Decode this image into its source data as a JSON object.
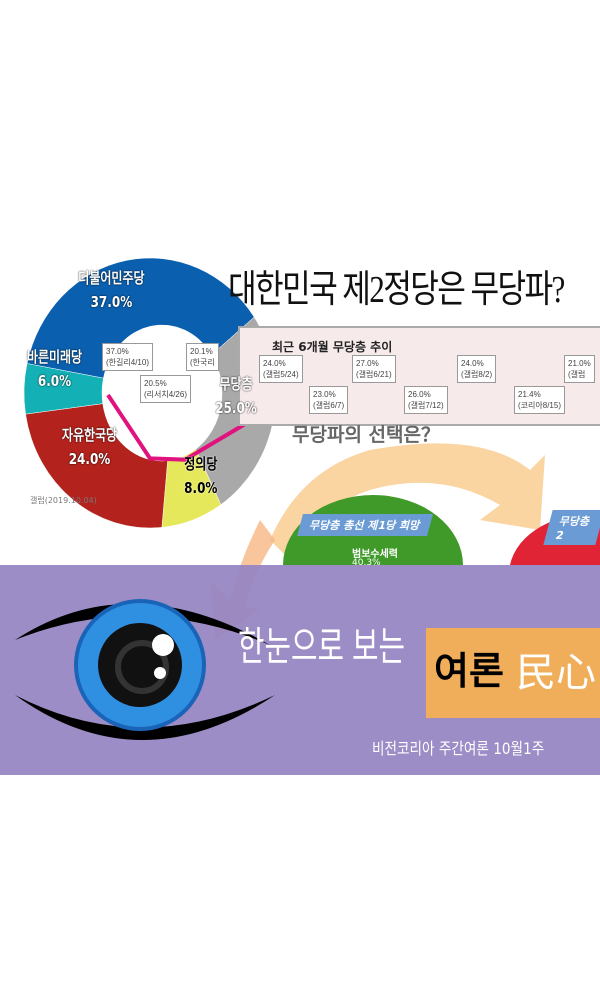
{
  "title": "대한민국 제2정당은 무당파?",
  "donut": {
    "source": "갤럽(2019.10.04)",
    "slices": [
      {
        "label": "더불어민주당",
        "value": "37.0%",
        "color": "#0a5fae"
      },
      {
        "label": "무당층",
        "value": "25.0%",
        "color": "#a9a9a9"
      },
      {
        "label": "정의당",
        "value": "8.0%",
        "color": "#e6e85c"
      },
      {
        "label": "자유한국당",
        "value": "24.0%",
        "color": "#b3221c"
      },
      {
        "label": "바른미래당",
        "value": "6.0%",
        "color": "#13b0b5"
      }
    ]
  },
  "trend": {
    "title": "최근 6개월 무당층 추이",
    "points": [
      {
        "value": "37.0%",
        "label": "(한길리4/10)"
      },
      {
        "value": "20.5%",
        "label": "(리서치4/26)"
      },
      {
        "value": "20.1%",
        "label": "(한국리"
      },
      {
        "value": "24.0%",
        "label": "(갤럽5/24)"
      },
      {
        "value": "23.0%",
        "label": "(갤럽6/7)"
      },
      {
        "value": "27.0%",
        "label": "(갤럽6/21)"
      },
      {
        "value": "26.0%",
        "label": "(갤럽7/12)"
      },
      {
        "value": "24.0%",
        "label": "(갤럽8/2)"
      },
      {
        "value": "21.4%",
        "label": "(코리아8/15)"
      },
      {
        "value": "21.0%",
        "label": "(갤럽"
      }
    ]
  },
  "question": "무당파의 선택은？",
  "subheads": [
    "무당층 총선 제1당 희망",
    "무당층 2"
  ],
  "subpie": {
    "label": "범보수세력",
    "value": "40.3%"
  },
  "banner": {
    "headline": "한눈으로 보는",
    "tag1": "여론",
    "tag2": "民心",
    "byline": "비전코리아 주간여론 10월1주"
  },
  "colors": {
    "band": "#9484c3",
    "orange": "#f1ae5a",
    "iris": "#2f8fe0"
  }
}
